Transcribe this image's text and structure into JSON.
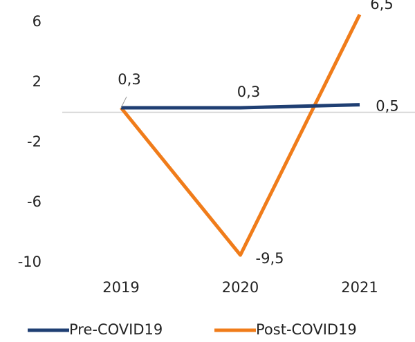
{
  "chart_data": {
    "type": "line",
    "categories": [
      "2019",
      "2020",
      "2021"
    ],
    "series": [
      {
        "name": "Pre-COVID19",
        "color": "#1f3f73",
        "values": [
          0.3,
          0.3,
          0.5
        ],
        "value_labels": [
          "0,3",
          "0,3",
          "0,5"
        ]
      },
      {
        "name": "Post-COVID19",
        "color": "#f07c1a",
        "values": [
          0.3,
          -9.5,
          6.5
        ],
        "value_labels": [
          null,
          "-9,5",
          "6,5"
        ]
      }
    ],
    "ylim": [
      -10,
      7
    ],
    "yticks": [
      -10,
      -6,
      -2,
      2,
      6
    ],
    "grid": false,
    "legend": "bottom"
  }
}
